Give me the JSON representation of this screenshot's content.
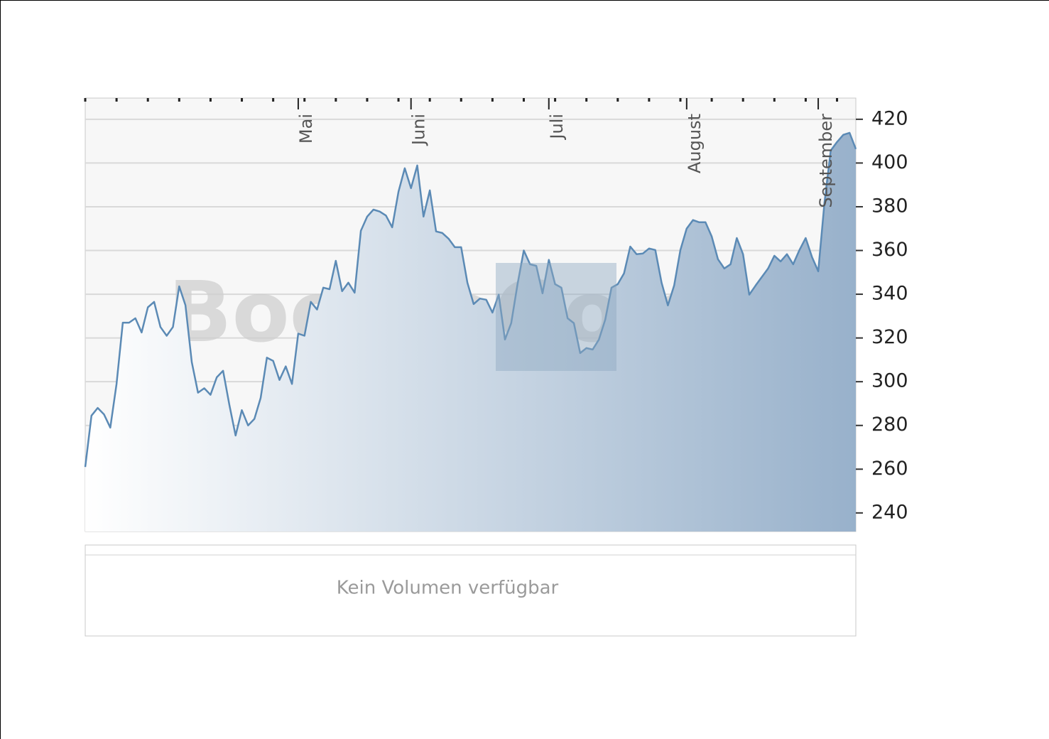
{
  "chart_data": {
    "type": "area",
    "watermark": "BoerseGo.de",
    "volume_note": "Kein Volumen verfügbar",
    "categories": [
      null,
      null,
      null,
      null,
      null,
      null,
      null,
      null,
      null,
      null,
      null,
      null,
      null,
      null,
      null,
      null,
      null,
      null,
      null,
      null,
      null,
      null,
      null,
      null,
      null,
      null,
      null,
      null,
      null,
      null,
      null,
      null,
      null,
      null,
      "Mai",
      null,
      null,
      null,
      null,
      null,
      null,
      null,
      null,
      null,
      null,
      null,
      null,
      null,
      null,
      null,
      null,
      null,
      "Juni",
      null,
      null,
      null,
      null,
      null,
      null,
      null,
      null,
      null,
      null,
      null,
      null,
      null,
      null,
      null,
      null,
      null,
      null,
      null,
      null,
      null,
      "Juli",
      null,
      null,
      null,
      null,
      null,
      null,
      null,
      null,
      null,
      null,
      null,
      null,
      null,
      null,
      null,
      null,
      null,
      null,
      null,
      null,
      null,
      "August",
      null,
      null,
      null,
      null,
      null,
      null,
      null,
      null,
      null,
      null,
      null,
      null,
      null,
      null,
      null,
      null,
      null,
      null,
      null,
      null,
      "September",
      null,
      null,
      null,
      null,
      null,
      null
    ],
    "values": [
      261,
      284.5,
      288,
      285,
      279,
      299,
      327,
      327,
      329,
      322.5,
      334,
      336.5,
      325,
      321,
      325,
      343.6,
      335,
      309,
      295,
      297,
      294,
      302,
      305,
      289.5,
      275.4,
      287,
      280,
      283,
      292.6,
      311,
      309.5,
      300.8,
      307,
      299,
      322,
      321,
      336.5,
      333,
      343,
      342.3,
      355.3,
      341.4,
      345.3,
      340.7,
      369,
      375.5,
      378.7,
      377.8,
      376,
      370.6,
      386.9,
      397.6,
      388.5,
      398.9,
      375.5,
      387.5,
      368.7,
      368,
      365.4,
      361.5,
      361.5,
      345.3,
      335.5,
      338,
      337.5,
      331.6,
      339.8,
      319.3,
      326.8,
      344.6,
      360,
      353.7,
      353,
      340.4,
      355.7,
      344.6,
      343,
      329,
      326.8,
      313.1,
      315.4,
      314.7,
      319.3,
      328.4,
      343,
      344.6,
      349.5,
      361.8,
      358.3,
      358.6,
      360.9,
      360.2,
      345.3,
      334.9,
      344,
      360.2,
      370,
      373.9,
      372.9,
      372.9,
      366.4,
      356,
      351.8,
      353.7,
      365.7,
      358.3,
      339.8,
      344,
      347.9,
      351.8,
      357.6,
      355,
      358.3,
      353.7,
      360.2,
      365.7,
      357,
      350.5,
      382,
      405.7,
      409.6,
      412.9,
      413.8,
      406.4
    ],
    "color": "#5b8ab5",
    "area_color": "#98b1cb",
    "ylim": [
      231.5,
      429.7
    ],
    "yticks": [
      240,
      260,
      280,
      300,
      320,
      340,
      360,
      380,
      400,
      420
    ],
    "grid": true
  }
}
